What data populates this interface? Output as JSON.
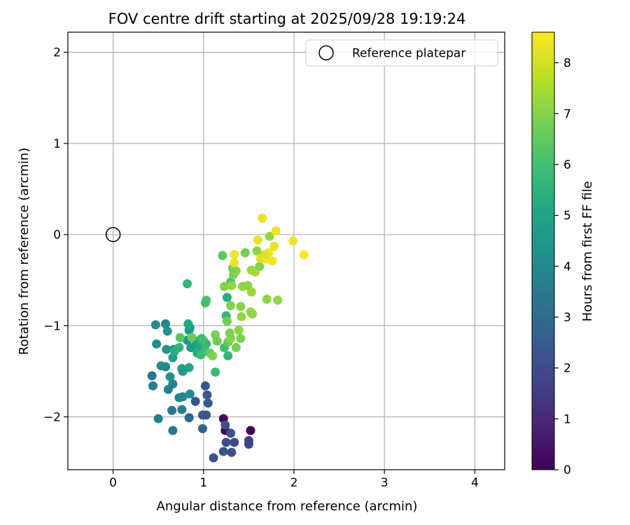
{
  "chart_data": {
    "type": "scatter",
    "title": "FOV centre drift starting at 2025/09/28 19:19:24",
    "xlabel": "Angular distance from reference (arcmin)",
    "ylabel": "Rotation from reference (arcmin)",
    "xlim": [
      -0.5,
      4.33
    ],
    "ylim": [
      -2.58,
      2.22
    ],
    "xticks": [
      0,
      1,
      2,
      3,
      4
    ],
    "yticks": [
      -2,
      -1,
      0,
      1,
      2
    ],
    "grid": true,
    "legend": {
      "placement": "top-right",
      "entries": [
        "Reference platepar"
      ]
    },
    "reference_point": {
      "x": 0,
      "y": 0,
      "label": "Reference platepar"
    },
    "colorbar": {
      "label": "Hours from first FF file",
      "range": [
        0,
        8.6
      ],
      "ticks": [
        0,
        1,
        2,
        3,
        4,
        5,
        6,
        7,
        8
      ],
      "colormap": "viridis"
    },
    "points": [
      {
        "x": 1.22,
        "y": -2.02,
        "c": 0.1
      },
      {
        "x": 1.52,
        "y": -2.15,
        "c": 0.1
      },
      {
        "x": 1.24,
        "y": -2.15,
        "c": 0.2
      },
      {
        "x": 1.5,
        "y": -2.26,
        "c": 1.6
      },
      {
        "x": 1.5,
        "y": -2.3,
        "c": 1.6
      },
      {
        "x": 1.24,
        "y": -2.09,
        "c": 2.1
      },
      {
        "x": 1.25,
        "y": -2.28,
        "c": 2.0
      },
      {
        "x": 1.34,
        "y": -2.28,
        "c": 2.0
      },
      {
        "x": 1.3,
        "y": -2.18,
        "c": 2.1
      },
      {
        "x": 1.22,
        "y": -2.38,
        "c": 2.2
      },
      {
        "x": 1.31,
        "y": -2.39,
        "c": 2.1
      },
      {
        "x": 1.11,
        "y": -2.45,
        "c": 2.2
      },
      {
        "x": 0.91,
        "y": -1.83,
        "c": 2.3
      },
      {
        "x": 0.99,
        "y": -1.98,
        "c": 2.3
      },
      {
        "x": 1.03,
        "y": -1.98,
        "c": 2.4
      },
      {
        "x": 1.02,
        "y": -1.66,
        "c": 2.4
      },
      {
        "x": 1.04,
        "y": -1.76,
        "c": 2.5
      },
      {
        "x": 1.05,
        "y": -1.85,
        "c": 2.4
      },
      {
        "x": 0.84,
        "y": -2.01,
        "c": 2.9
      },
      {
        "x": 0.99,
        "y": -2.13,
        "c": 2.8
      },
      {
        "x": 0.65,
        "y": -1.93,
        "c": 3.3
      },
      {
        "x": 0.76,
        "y": -1.92,
        "c": 3.5
      },
      {
        "x": 0.66,
        "y": -2.15,
        "c": 3.4
      },
      {
        "x": 0.5,
        "y": -2.02,
        "c": 3.6
      },
      {
        "x": 0.43,
        "y": -1.55,
        "c": 3.5
      },
      {
        "x": 0.44,
        "y": -1.66,
        "c": 3.6
      },
      {
        "x": 0.61,
        "y": -1.7,
        "c": 3.8
      },
      {
        "x": 0.73,
        "y": -1.79,
        "c": 3.9
      },
      {
        "x": 0.77,
        "y": -1.78,
        "c": 4.0
      },
      {
        "x": 0.85,
        "y": -1.75,
        "c": 4.2
      },
      {
        "x": 0.58,
        "y": -1.45,
        "c": 3.9
      },
      {
        "x": 0.66,
        "y": -1.64,
        "c": 3.8
      },
      {
        "x": 0.63,
        "y": -1.56,
        "c": 4.3
      },
      {
        "x": 0.53,
        "y": -1.44,
        "c": 4.2
      },
      {
        "x": 0.48,
        "y": -1.2,
        "c": 4.1
      },
      {
        "x": 0.47,
        "y": -0.99,
        "c": 4.0
      },
      {
        "x": 0.58,
        "y": -0.98,
        "c": 4.0
      },
      {
        "x": 0.6,
        "y": -1.06,
        "c": 4.4
      },
      {
        "x": 0.59,
        "y": -1.26,
        "c": 4.6
      },
      {
        "x": 0.67,
        "y": -1.26,
        "c": 4.5
      },
      {
        "x": 0.66,
        "y": -1.35,
        "c": 4.9
      },
      {
        "x": 0.76,
        "y": -1.47,
        "c": 4.8
      },
      {
        "x": 0.77,
        "y": -1.5,
        "c": 4.6
      },
      {
        "x": 0.84,
        "y": -1.46,
        "c": 5.0
      },
      {
        "x": 0.84,
        "y": -1.05,
        "c": 4.5
      },
      {
        "x": 0.85,
        "y": -1.02,
        "c": 4.7
      },
      {
        "x": 0.83,
        "y": -0.98,
        "c": 5.1
      },
      {
        "x": 0.82,
        "y": -1.16,
        "c": 4.6
      },
      {
        "x": 0.86,
        "y": -1.24,
        "c": 4.7
      },
      {
        "x": 0.92,
        "y": -1.17,
        "c": 4.9
      },
      {
        "x": 0.95,
        "y": -1.22,
        "c": 5.1
      },
      {
        "x": 0.97,
        "y": -1.26,
        "c": 5.2
      },
      {
        "x": 0.68,
        "y": -1.28,
        "c": 5.3
      },
      {
        "x": 0.73,
        "y": -1.24,
        "c": 5.6
      },
      {
        "x": 0.93,
        "y": -1.3,
        "c": 5.3
      },
      {
        "x": 0.97,
        "y": -1.32,
        "c": 5.8
      },
      {
        "x": 1.0,
        "y": -1.17,
        "c": 5.5
      },
      {
        "x": 1.03,
        "y": -1.2,
        "c": 5.7
      },
      {
        "x": 1.02,
        "y": -1.28,
        "c": 5.9
      },
      {
        "x": 0.98,
        "y": -1.14,
        "c": 6.0
      },
      {
        "x": 0.82,
        "y": -0.54,
        "c": 5.6
      },
      {
        "x": 1.26,
        "y": -0.69,
        "c": 5.4
      },
      {
        "x": 1.25,
        "y": -0.89,
        "c": 5.7
      },
      {
        "x": 1.27,
        "y": -1.33,
        "c": 5.6
      },
      {
        "x": 1.13,
        "y": -1.51,
        "c": 5.8
      },
      {
        "x": 1.23,
        "y": -1.24,
        "c": 6.0
      },
      {
        "x": 1.03,
        "y": -0.72,
        "c": 6.2
      },
      {
        "x": 1.02,
        "y": -0.75,
        "c": 6.0
      },
      {
        "x": 1.3,
        "y": -0.52,
        "c": 6.2
      },
      {
        "x": 1.21,
        "y": -0.23,
        "c": 6.4
      },
      {
        "x": 1.26,
        "y": -0.95,
        "c": 6.7
      },
      {
        "x": 1.27,
        "y": -1.18,
        "c": 6.6
      },
      {
        "x": 1.13,
        "y": -1.1,
        "c": 6.8
      },
      {
        "x": 1.07,
        "y": -1.3,
        "c": 6.5
      },
      {
        "x": 1.1,
        "y": -1.33,
        "c": 6.9
      },
      {
        "x": 1.15,
        "y": -1.17,
        "c": 6.7
      },
      {
        "x": 0.74,
        "y": -1.13,
        "c": 6.4
      },
      {
        "x": 0.87,
        "y": -1.13,
        "c": 6.6
      },
      {
        "x": 1.29,
        "y": -1.08,
        "c": 6.9
      },
      {
        "x": 1.3,
        "y": -1.14,
        "c": 7.0
      },
      {
        "x": 1.36,
        "y": -1.24,
        "c": 6.8
      },
      {
        "x": 1.39,
        "y": -1.05,
        "c": 7.1
      },
      {
        "x": 1.41,
        "y": -1.14,
        "c": 6.9
      },
      {
        "x": 1.3,
        "y": -0.78,
        "c": 6.9
      },
      {
        "x": 1.41,
        "y": -0.79,
        "c": 7.0
      },
      {
        "x": 1.42,
        "y": -0.9,
        "c": 7.2
      },
      {
        "x": 1.23,
        "y": -0.57,
        "c": 7.0
      },
      {
        "x": 1.31,
        "y": -0.56,
        "c": 7.2
      },
      {
        "x": 1.33,
        "y": -0.44,
        "c": 6.9
      },
      {
        "x": 1.36,
        "y": -0.4,
        "c": 7.1
      },
      {
        "x": 1.32,
        "y": -0.37,
        "c": 6.8
      },
      {
        "x": 1.43,
        "y": -0.57,
        "c": 7.2
      },
      {
        "x": 1.49,
        "y": -0.56,
        "c": 7.1
      },
      {
        "x": 1.53,
        "y": -0.63,
        "c": 7.3
      },
      {
        "x": 1.52,
        "y": -0.85,
        "c": 7.2
      },
      {
        "x": 1.54,
        "y": -0.87,
        "c": 7.1
      },
      {
        "x": 1.53,
        "y": -0.39,
        "c": 7.3
      },
      {
        "x": 1.57,
        "y": -0.41,
        "c": 7.4
      },
      {
        "x": 1.62,
        "y": -0.35,
        "c": 7.0
      },
      {
        "x": 1.46,
        "y": -0.2,
        "c": 6.8
      },
      {
        "x": 1.59,
        "y": -0.18,
        "c": 7.1
      },
      {
        "x": 1.7,
        "y": -0.71,
        "c": 7.1
      },
      {
        "x": 1.82,
        "y": -0.72,
        "c": 7.2
      },
      {
        "x": 1.73,
        "y": -0.02,
        "c": 7.2
      },
      {
        "x": 1.34,
        "y": -0.22,
        "c": 8.4
      },
      {
        "x": 1.34,
        "y": -0.31,
        "c": 8.3
      },
      {
        "x": 1.65,
        "y": 0.18,
        "c": 8.3
      },
      {
        "x": 1.8,
        "y": 0.04,
        "c": 8.4
      },
      {
        "x": 1.6,
        "y": -0.06,
        "c": 8.3
      },
      {
        "x": 1.63,
        "y": -0.26,
        "c": 8.2
      },
      {
        "x": 1.69,
        "y": -0.27,
        "c": 8.5
      },
      {
        "x": 1.72,
        "y": -0.2,
        "c": 8.4
      },
      {
        "x": 1.76,
        "y": -0.29,
        "c": 8.4
      },
      {
        "x": 1.78,
        "y": -0.13,
        "c": 8.3
      },
      {
        "x": 1.99,
        "y": -0.07,
        "c": 8.4
      },
      {
        "x": 2.11,
        "y": -0.22,
        "c": 8.5
      },
      {
        "x": 1.68,
        "y": -0.22,
        "c": 8.2
      }
    ]
  }
}
